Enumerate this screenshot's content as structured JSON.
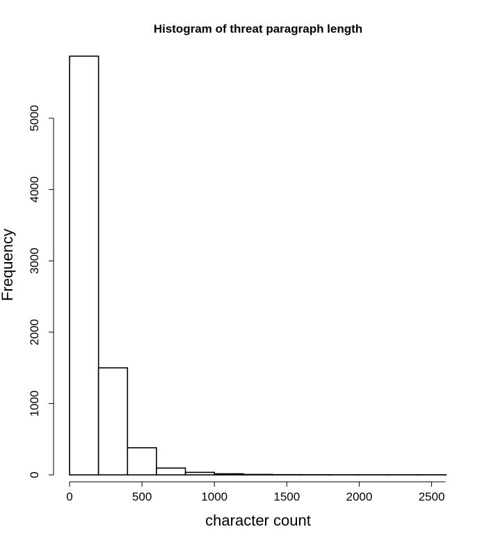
{
  "chart_data": {
    "type": "bar",
    "title": "Histogram of threat paragraph length",
    "xlabel": "character count",
    "ylabel": "Frequency",
    "bins": [
      {
        "from": 0,
        "to": 200,
        "count": 5870
      },
      {
        "from": 200,
        "to": 400,
        "count": 1500
      },
      {
        "from": 400,
        "to": 600,
        "count": 380
      },
      {
        "from": 600,
        "to": 800,
        "count": 95
      },
      {
        "from": 800,
        "to": 1000,
        "count": 35
      },
      {
        "from": 1000,
        "to": 1200,
        "count": 15
      },
      {
        "from": 1200,
        "to": 1400,
        "count": 6
      },
      {
        "from": 1400,
        "to": 1600,
        "count": 3
      },
      {
        "from": 1600,
        "to": 1800,
        "count": 2
      },
      {
        "from": 1800,
        "to": 2000,
        "count": 1
      },
      {
        "from": 2000,
        "to": 2200,
        "count": 1
      },
      {
        "from": 2200,
        "to": 2400,
        "count": 1
      },
      {
        "from": 2400,
        "to": 2600,
        "count": 1
      }
    ],
    "xlim": [
      0,
      2600
    ],
    "ylim": [
      0,
      5870
    ],
    "xticks": [
      0,
      500,
      1000,
      1500,
      2000,
      2500
    ],
    "xtick_labels": [
      "0",
      "500",
      "1000",
      "1500",
      "2000",
      "2500"
    ],
    "yticks": [
      0,
      1000,
      2000,
      3000,
      4000,
      5000
    ],
    "ytick_labels": [
      "0",
      "1000",
      "2000",
      "3000",
      "4000",
      "5000"
    ],
    "grid": false,
    "bar_fill": "#ffffff",
    "bar_stroke": "#000000"
  }
}
